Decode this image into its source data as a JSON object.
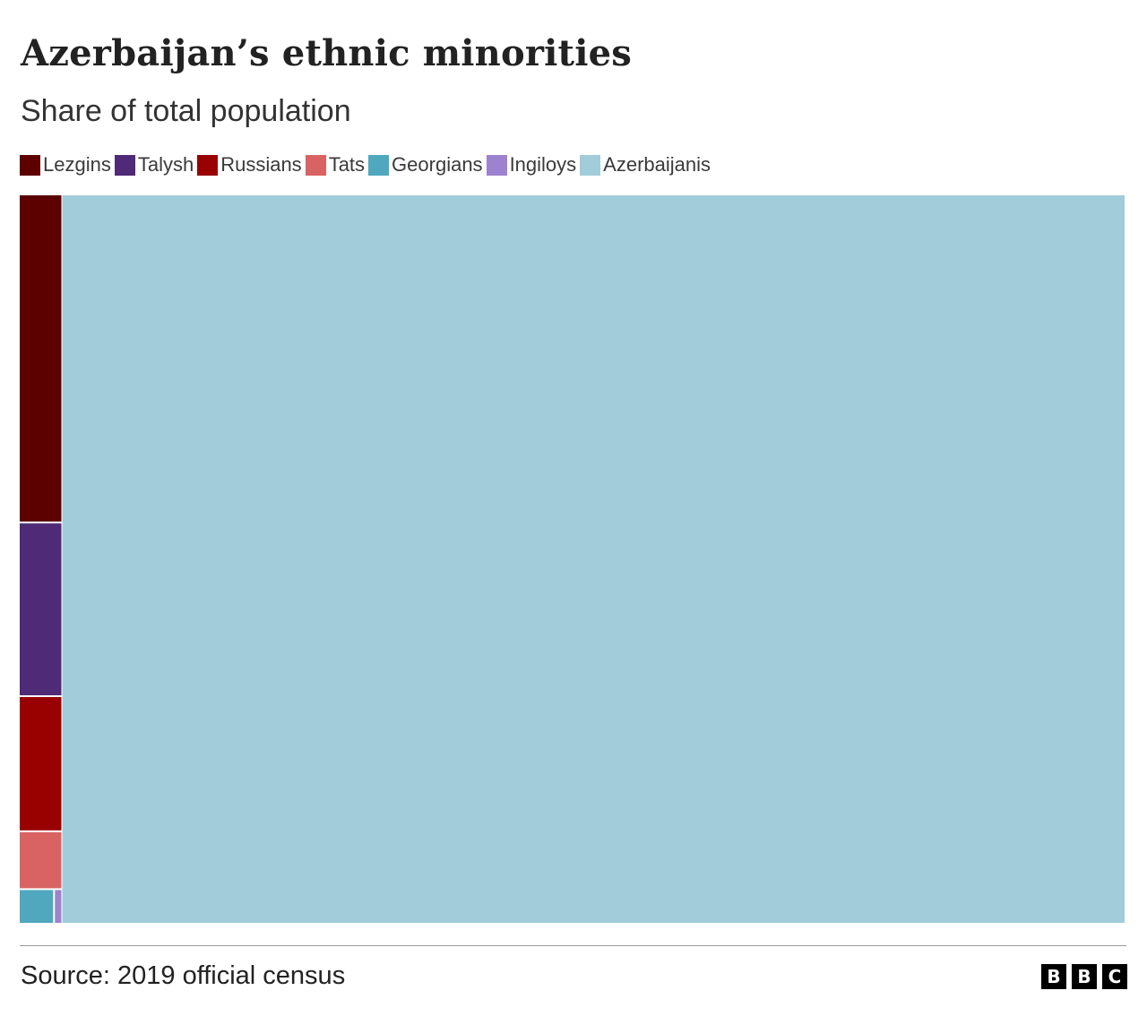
{
  "header": {
    "title": "Azerbaijan’s ethnic minorities",
    "subtitle": "Share of total population"
  },
  "chart_data": {
    "type": "treemap",
    "title": "Azerbaijan’s ethnic minorities",
    "subtitle": "Share of total population",
    "legend_position": "top-left",
    "categories": [
      "Lezgins",
      "Talysh",
      "Russians",
      "Tats",
      "Georgians",
      "Ingiloys",
      "Azerbaijanis"
    ],
    "values": [
      1.7,
      0.9,
      0.7,
      0.3,
      0.14,
      0.03,
      96.2
    ],
    "colors": [
      "#5c0000",
      "#4e2a77",
      "#990000",
      "#d96363",
      "#4fa8be",
      "#9d82cf",
      "#a2ccd9"
    ]
  },
  "footer": {
    "source": "Source: 2019 official census",
    "logo_letters": [
      "B",
      "B",
      "C"
    ]
  }
}
